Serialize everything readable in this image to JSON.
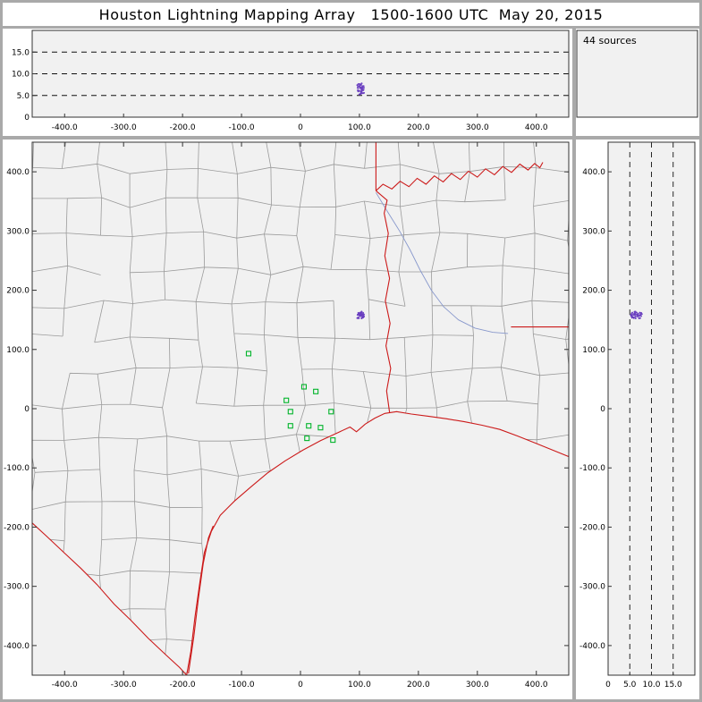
{
  "title": "Houston Lightning Mapping Array   1500-1600 UTC  May 20, 2015",
  "colors": {
    "frame": "#a9a9a9",
    "plot_bg": "#f1f1f1",
    "box": "#333333",
    "county": "#9a9a9a",
    "border_red": "#cc1a1a",
    "river_blue": "#8898cc",
    "station_green": "#00b42a",
    "source": "#6a3fc0",
    "dash": "#111111"
  },
  "chart_data": {
    "type": "scatter",
    "title": "Houston Lightning Mapping Array   1500-1600 UTC  May 20, 2015",
    "panels": {
      "alt_vs_ew": {
        "xlim": [
          -455,
          455
        ],
        "alt_lim": [
          0,
          20
        ],
        "yticks": {
          "values": [
            0,
            5,
            10,
            15
          ],
          "labels": [
            "0",
            "5.0",
            "10.0",
            "15.0"
          ]
        },
        "dashed_alt_lines": [
          5,
          10,
          15
        ]
      },
      "source_histogram": {
        "label": "44 sources",
        "alt_lim": [
          0,
          20
        ]
      },
      "plan_view": {
        "xlim": [
          -455,
          455
        ],
        "ylim": [
          -450,
          450
        ],
        "xticks": {
          "values": [
            -400,
            -300,
            -200,
            -100,
            0,
            100,
            200,
            300,
            400
          ],
          "labels": [
            "-400.0",
            "-300.0",
            "-200.0",
            "-100.0",
            "0",
            "100.0",
            "200.0",
            "300.0",
            "400.0"
          ]
        },
        "yticks": {
          "values": [
            400,
            300,
            200,
            100,
            0,
            -100,
            -200,
            -300,
            -400
          ],
          "labels": [
            "400.0",
            "300.0",
            "200.0",
            "100.0",
            "0",
            "-100.0",
            "-200.0",
            "-300.0",
            "-400.0"
          ]
        }
      },
      "alt_vs_ns": {
        "alt_lim": [
          0,
          20
        ],
        "ylim": [
          -450,
          450
        ],
        "xticks": {
          "values": [
            0,
            5,
            10,
            15
          ],
          "labels": [
            "0",
            "5.0",
            "10.0",
            "15.0"
          ]
        },
        "yticks": {
          "values": [
            400,
            300,
            200,
            100,
            0,
            -100,
            -200,
            -300,
            -400
          ],
          "labels": [
            "400.0",
            "300.0",
            "200.0",
            "100.0",
            "0",
            "-100.0",
            "-200.0",
            "-300.0",
            "-400.0"
          ]
        },
        "dashed_alt_lines": [
          5,
          10,
          15
        ]
      }
    },
    "stations_km": [
      [
        -88,
        93
      ],
      [
        6,
        37
      ],
      [
        26,
        29
      ],
      [
        -24,
        14
      ],
      [
        -17,
        -5
      ],
      [
        52,
        -5
      ],
      [
        -17,
        -29
      ],
      [
        14,
        -29
      ],
      [
        34,
        -32
      ],
      [
        11,
        -50
      ],
      [
        55,
        -53
      ]
    ],
    "sources": {
      "count": 44,
      "x_km": 102,
      "y_km": 158,
      "alt_km": 6.5,
      "spread_xy_km": 6,
      "spread_alt_km": 1.3,
      "seed": 11
    },
    "map": {
      "land_polygon": [
        [
          -455,
          -193
        ],
        [
          -430,
          -216
        ],
        [
          -400,
          -244
        ],
        [
          -372,
          -270
        ],
        [
          -345,
          -297
        ],
        [
          -316,
          -330
        ],
        [
          -288,
          -357
        ],
        [
          -258,
          -388
        ],
        [
          -228,
          -416
        ],
        [
          -205,
          -437
        ],
        [
          -193,
          -450
        ],
        [
          -186,
          -410
        ],
        [
          -179,
          -352
        ],
        [
          -171,
          -295
        ],
        [
          -163,
          -243
        ],
        [
          -151,
          -207
        ],
        [
          -136,
          -180
        ],
        [
          -112,
          -156
        ],
        [
          -84,
          -132
        ],
        [
          -55,
          -108
        ],
        [
          -26,
          -88
        ],
        [
          4,
          -70
        ],
        [
          34,
          -54
        ],
        [
          62,
          -41
        ],
        [
          84,
          -31
        ],
        [
          95,
          -39
        ],
        [
          110,
          -26
        ],
        [
          126,
          -16
        ],
        [
          143,
          -8
        ],
        [
          163,
          -5
        ],
        [
          188,
          -9
        ],
        [
          218,
          -13
        ],
        [
          248,
          -17
        ],
        [
          278,
          -22
        ],
        [
          308,
          -28
        ],
        [
          338,
          -35
        ],
        [
          368,
          -46
        ],
        [
          398,
          -58
        ],
        [
          428,
          -70
        ],
        [
          455,
          -81
        ],
        [
          455,
          450
        ],
        [
          -455,
          450
        ]
      ],
      "borders_red": {
        "rio_grande": [
          [
            -455,
            -193
          ],
          [
            -430,
            -216
          ],
          [
            -400,
            -244
          ],
          [
            -372,
            -270
          ],
          [
            -345,
            -297
          ],
          [
            -316,
            -330
          ],
          [
            -288,
            -357
          ],
          [
            -258,
            -388
          ],
          [
            -228,
            -416
          ],
          [
            -205,
            -437
          ],
          [
            -193,
            -450
          ]
        ],
        "coastline": [
          [
            -193,
            -450
          ],
          [
            -186,
            -410
          ],
          [
            -179,
            -352
          ],
          [
            -171,
            -295
          ],
          [
            -163,
            -243
          ],
          [
            -151,
            -207
          ],
          [
            -136,
            -180
          ],
          [
            -112,
            -156
          ],
          [
            -84,
            -132
          ],
          [
            -55,
            -108
          ],
          [
            -26,
            -88
          ],
          [
            4,
            -70
          ],
          [
            34,
            -54
          ],
          [
            62,
            -41
          ],
          [
            84,
            -31
          ],
          [
            95,
            -39
          ],
          [
            110,
            -26
          ],
          [
            126,
            -16
          ],
          [
            143,
            -8
          ],
          [
            163,
            -5
          ],
          [
            188,
            -9
          ],
          [
            218,
            -13
          ],
          [
            248,
            -17
          ],
          [
            278,
            -22
          ],
          [
            308,
            -28
          ],
          [
            338,
            -35
          ],
          [
            368,
            -46
          ],
          [
            398,
            -58
          ],
          [
            428,
            -70
          ],
          [
            455,
            -81
          ]
        ],
        "barrier_island": [
          [
            -190,
            -447
          ],
          [
            -181,
            -385
          ],
          [
            -173,
            -320
          ],
          [
            -165,
            -262
          ],
          [
            -156,
            -218
          ],
          [
            -148,
            -198
          ]
        ],
        "sabine_tx_la": [
          [
            151,
            -6
          ],
          [
            146,
            30
          ],
          [
            153,
            68
          ],
          [
            145,
            106
          ],
          [
            152,
            144
          ],
          [
            144,
            182
          ],
          [
            151,
            220
          ],
          [
            143,
            258
          ],
          [
            149,
            296
          ],
          [
            142,
            330
          ],
          [
            147,
            352
          ],
          [
            128,
            368
          ]
        ],
        "state_corner_meridian": [
          [
            128,
            368
          ],
          [
            128,
            450
          ]
        ],
        "red_river": [
          [
            128,
            368
          ],
          [
            140,
            379
          ],
          [
            155,
            371
          ],
          [
            169,
            384
          ],
          [
            184,
            375
          ],
          [
            198,
            389
          ],
          [
            213,
            379
          ],
          [
            227,
            393
          ],
          [
            242,
            383
          ],
          [
            256,
            397
          ],
          [
            271,
            387
          ],
          [
            285,
            401
          ],
          [
            300,
            391
          ],
          [
            314,
            405
          ],
          [
            329,
            395
          ],
          [
            343,
            409
          ],
          [
            358,
            399
          ],
          [
            372,
            413
          ],
          [
            386,
            403
          ],
          [
            397,
            414
          ],
          [
            406,
            407
          ],
          [
            411,
            416
          ]
        ],
        "la_ms_border": [
          [
            357,
            138
          ],
          [
            455,
            138
          ]
        ]
      },
      "river_blue": [
        [
          128,
          365
        ],
        [
          148,
          332
        ],
        [
          168,
          300
        ],
        [
          186,
          268
        ],
        [
          203,
          234
        ],
        [
          222,
          200
        ],
        [
          243,
          172
        ],
        [
          268,
          150
        ],
        [
          296,
          136
        ],
        [
          326,
          129
        ],
        [
          352,
          127
        ]
      ],
      "county_mesh": {
        "spacing_km": 57,
        "jitter_km": 17,
        "skip_fraction": 0.12,
        "seed": 7
      }
    }
  }
}
